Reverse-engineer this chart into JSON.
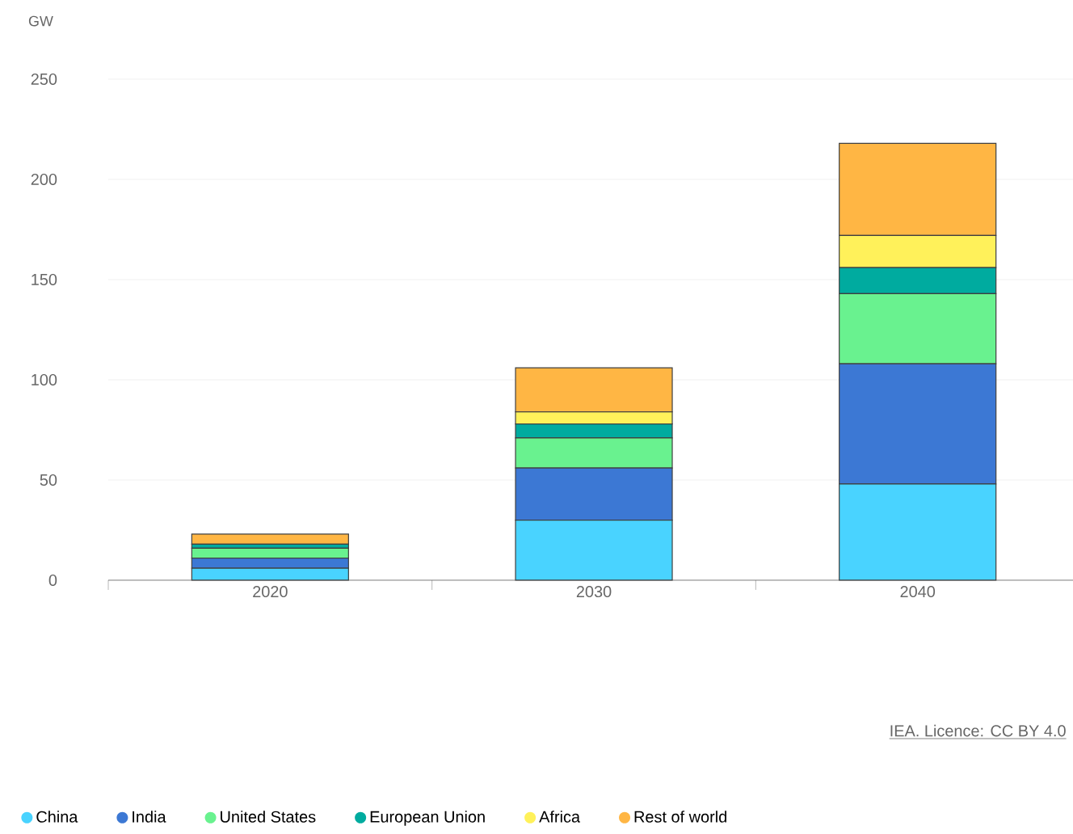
{
  "chart_data": {
    "type": "bar",
    "stacked": true,
    "ylabel": "GW",
    "categories": [
      "2020",
      "2030",
      "2040"
    ],
    "series": [
      {
        "name": "China",
        "color": "#49d3ff",
        "values": [
          6,
          30,
          48
        ]
      },
      {
        "name": "India",
        "color": "#3c78d4",
        "values": [
          5,
          26,
          60
        ]
      },
      {
        "name": "United States",
        "color": "#69f28f",
        "values": [
          5,
          15,
          35
        ]
      },
      {
        "name": "European Union",
        "color": "#00ab9f",
        "values": [
          2,
          7,
          13
        ]
      },
      {
        "name": "Africa",
        "color": "#fff15a",
        "values": [
          null,
          6,
          16
        ]
      },
      {
        "name": "Rest of world",
        "color": "#ffb644",
        "values": [
          5,
          22,
          46
        ]
      }
    ],
    "ylim": [
      0,
      250
    ],
    "yticks": [
      0,
      50,
      100,
      150,
      200,
      250
    ],
    "grid": "y",
    "legend": "bottom",
    "annotations": [
      "IEA. Licence: CC BY 4.0"
    ]
  }
}
